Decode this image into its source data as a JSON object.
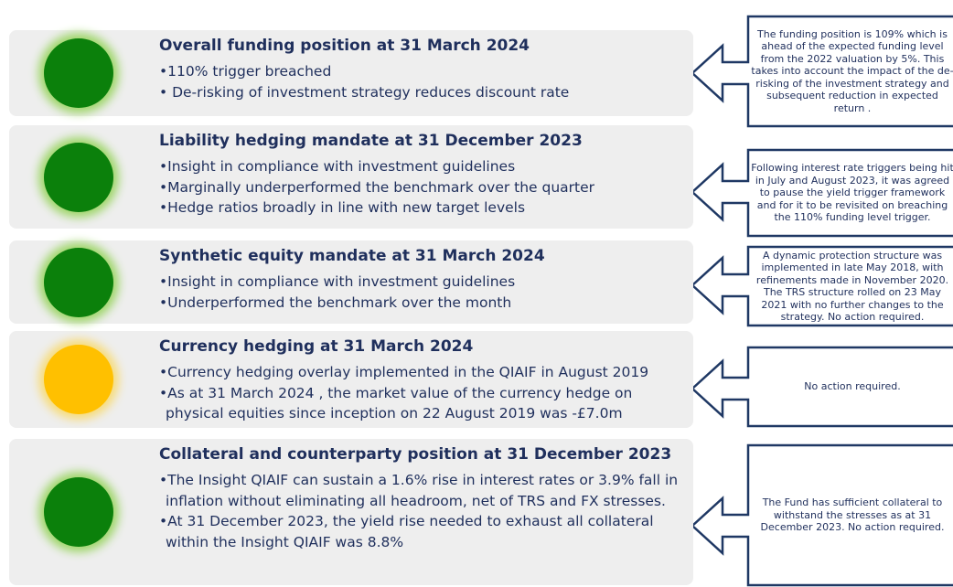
{
  "rows": [
    {
      "title": "Overall funding position at 31 March 2024",
      "color": "#0b800b",
      "bullets": [
        "•110% trigger breached",
        "• De-risking of investment strategy reduces discount rate"
      ],
      "note": "The funding position is 109% which is ahead of the expected funding level from the 2022 valuation by 5%. This takes into account the impact of the de-risking of the investment strategy and subsequent reduction in expected return ."
    },
    {
      "title": "Liability hedging mandate at 31 December 2023",
      "color": "#0b800b",
      "bullets": [
        "•Insight in compliance with investment guidelines",
        "•Marginally underperformed the benchmark over the quarter",
        "•Hedge ratios broadly in line with new target levels"
      ],
      "note": "Following interest rate triggers being hit in July and August 2023, it was agreed to pause the yield trigger framework and for it to be revisited on breaching the 110% funding level trigger."
    },
    {
      "title": "Synthetic equity mandate at 31 March 2024",
      "color": "#0b800b",
      "bullets": [
        "•Insight in compliance with investment guidelines",
        "•Underperformed the benchmark over the month"
      ],
      "note": "A dynamic protection structure was implemented in late May 2018, with refinements made in November 2020. The TRS structure rolled on 23 May 2021 with no further changes to the strategy. No action required."
    },
    {
      "title": "Currency hedging at 31 March 2024",
      "color": "#ffc000",
      "bullets": [
        "•Currency hedging overlay implemented in the QIAIF in August 2019",
        "•As at 31 March 2024 , the market value of the currency hedge on physical equities since inception on 22 August 2019 was -£7.0m"
      ],
      "note": "No action required."
    },
    {
      "title": "Collateral and counterparty position at 31 December 2023",
      "color": "#0b800b",
      "bullets": [
        "•The Insight QIAIF can sustain a 1.6% rise in interest rates or 3.9% fall in inflation without eliminating all headroom, net of TRS and FX stresses.",
        "•At 31 December 2023, the yield rise needed to exhaust all collateral within the Insight QIAIF was 8.8%"
      ],
      "note": "The Fund has sufficient collateral to withstand the stresses as at 31 December 2023. No action required."
    }
  ]
}
